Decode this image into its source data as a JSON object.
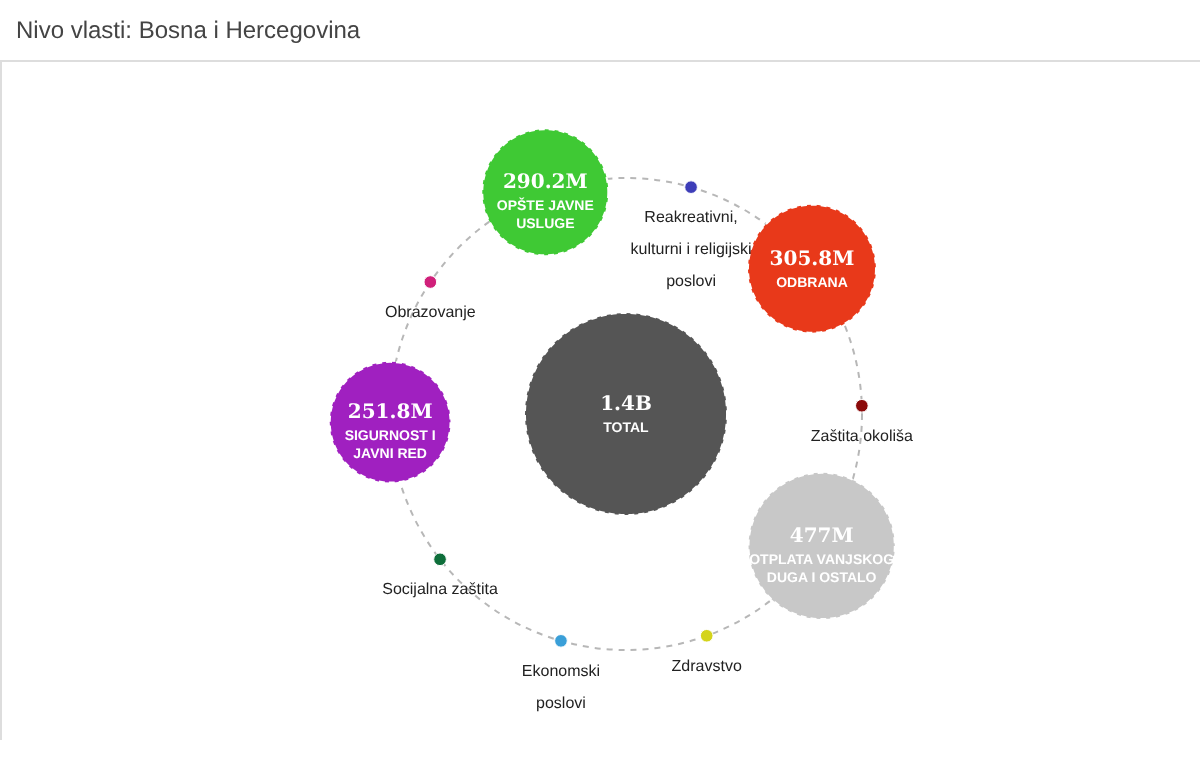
{
  "chart_data": {
    "type": "other",
    "title": "Nivo vlasti: Bosna i Hercegovina",
    "categories": [
      "TOTAL",
      "OPŠTE JAVNE\nUSLUGE",
      "Reakreativni,\nkulturni i religijski\nposlovi",
      "ODBRANA",
      "Zaštita okoliša",
      "OTPLATA VANJSKOG\nDUGA I OSTALO",
      "Zdravstvo",
      "Ekonomski\nposlovi",
      "Socijalna zaštita",
      "SIGURNOST I\nJAVNI RED",
      "Obrazovanje"
    ],
    "values": [
      1400000000,
      290200000,
      null,
      305800000,
      null,
      477000000,
      null,
      null,
      null,
      251800000,
      null
    ],
    "value_labels": [
      "1.4B",
      "290.2M",
      null,
      "305.8M",
      null,
      "477M",
      null,
      null,
      null,
      "251.8M",
      null
    ],
    "colors": [
      "#555555",
      "#3fc934",
      "#3d3db8",
      "#e8391a",
      "#8b0a0a",
      "#c8c8c8",
      "#d4d41a",
      "#3a9fd8",
      "#0e6e3a",
      "#a020c0",
      "#d0207a"
    ]
  }
}
